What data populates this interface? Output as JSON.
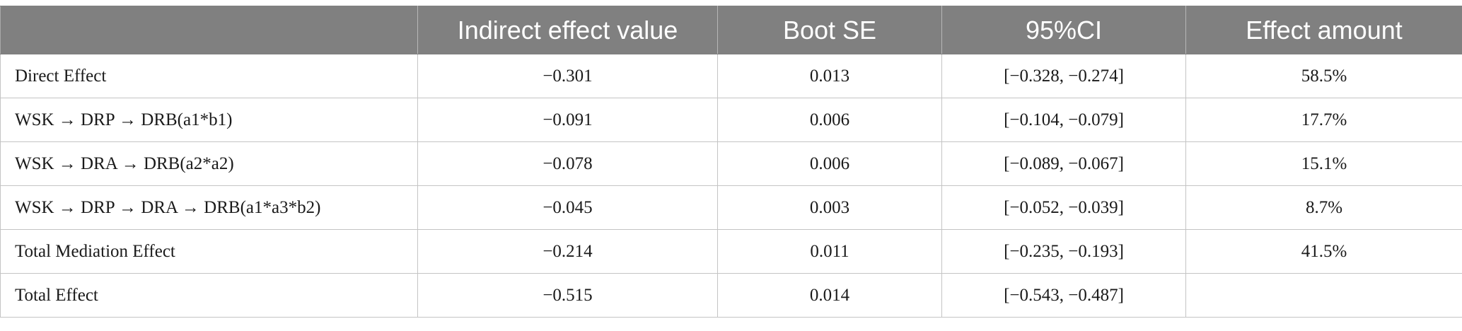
{
  "table": {
    "headers": [
      "",
      "Indirect effect value",
      "Boot SE",
      "95%CI",
      "Effect amount"
    ],
    "rows": [
      [
        "Direct Effect",
        "−0.301",
        "0.013",
        "[−0.328, −0.274]",
        "58.5%"
      ],
      [
        "WSK → DRP → DRB(a1*b1)",
        "−0.091",
        "0.006",
        "[−0.104, −0.079]",
        "17.7%"
      ],
      [
        "WSK → DRA → DRB(a2*a2)",
        "−0.078",
        "0.006",
        "[−0.089, −0.067]",
        "15.1%"
      ],
      [
        "WSK → DRP → DRA → DRB(a1*a3*b2)",
        "−0.045",
        "0.003",
        "[−0.052, −0.039]",
        "8.7%"
      ],
      [
        "Total Mediation Effect",
        "−0.214",
        "0.011",
        "[−0.235, −0.193]",
        "41.5%"
      ],
      [
        "Total Effect",
        "−0.515",
        "0.014",
        "[−0.543, −0.487]",
        ""
      ]
    ]
  },
  "colors": {
    "header_bg": "#808080",
    "header_text": "#ffffff",
    "grid": "#c4c4c4"
  }
}
